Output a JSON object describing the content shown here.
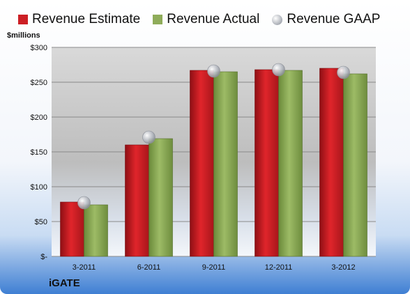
{
  "chart_data": {
    "type": "bar",
    "unit_label": "$millions",
    "company": "iGATE",
    "categories": [
      "3-2011",
      "6-2011",
      "9-2011",
      "12-2011",
      "3-2012"
    ],
    "series": [
      {
        "name": "Revenue Estimate",
        "kind": "bar",
        "color": "#cc1f25",
        "values": [
          78,
          160,
          267,
          268,
          270
        ]
      },
      {
        "name": "Revenue Actual",
        "kind": "bar",
        "color": "#8fac5a",
        "values": [
          74,
          169,
          265,
          267,
          262
        ]
      },
      {
        "name": "Revenue GAAP",
        "kind": "marker",
        "color": "#b8bcc4",
        "values": [
          77,
          171,
          266,
          268,
          264
        ]
      }
    ],
    "ylim": [
      0,
      300
    ],
    "yticks": [
      0,
      50,
      100,
      150,
      200,
      250,
      300
    ],
    "ytick_labels": [
      "$-",
      "$50",
      "$100",
      "$150",
      "$200",
      "$250",
      "$300"
    ],
    "grid": true,
    "legend_position": "top"
  }
}
